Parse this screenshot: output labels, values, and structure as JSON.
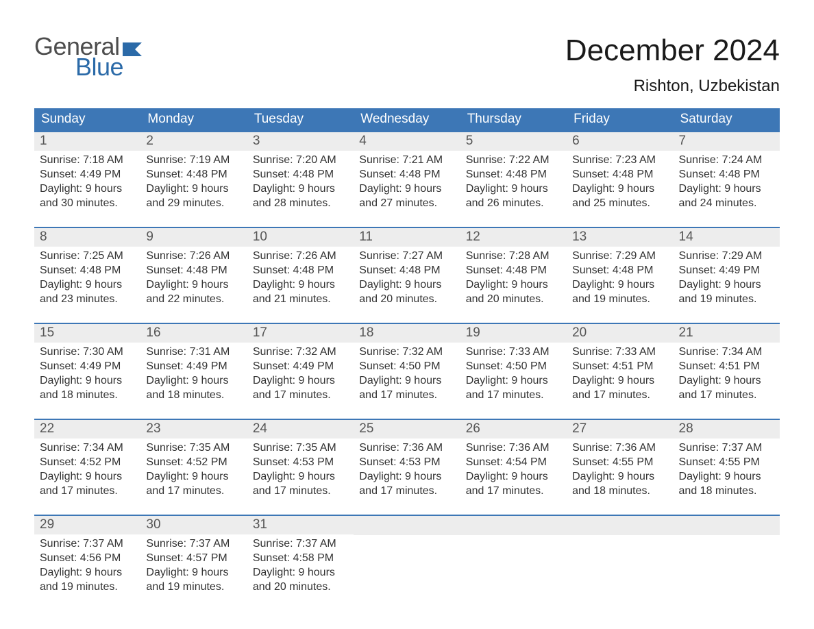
{
  "logo": {
    "word1": "General",
    "word2": "Blue",
    "text_color_top": "#4d4d4d",
    "text_color_bottom": "#2b6aa8",
    "flag_color": "#2b6aa8"
  },
  "header": {
    "month_title": "December 2024",
    "location": "Rishton, Uzbekistan"
  },
  "calendar": {
    "header_bg": "#3d77b6",
    "header_text_color": "#ffffff",
    "row_border_color": "#3d77b6",
    "daynum_bg": "#ededed",
    "daynum_color": "#555555",
    "body_text_color": "#333333",
    "weekdays": [
      "Sunday",
      "Monday",
      "Tuesday",
      "Wednesday",
      "Thursday",
      "Friday",
      "Saturday"
    ],
    "weeks": [
      [
        {
          "n": "1",
          "sunrise": "7:18 AM",
          "sunset": "4:49 PM",
          "daylight_l1": "Daylight: 9 hours",
          "daylight_l2": "and 30 minutes."
        },
        {
          "n": "2",
          "sunrise": "7:19 AM",
          "sunset": "4:48 PM",
          "daylight_l1": "Daylight: 9 hours",
          "daylight_l2": "and 29 minutes."
        },
        {
          "n": "3",
          "sunrise": "7:20 AM",
          "sunset": "4:48 PM",
          "daylight_l1": "Daylight: 9 hours",
          "daylight_l2": "and 28 minutes."
        },
        {
          "n": "4",
          "sunrise": "7:21 AM",
          "sunset": "4:48 PM",
          "daylight_l1": "Daylight: 9 hours",
          "daylight_l2": "and 27 minutes."
        },
        {
          "n": "5",
          "sunrise": "7:22 AM",
          "sunset": "4:48 PM",
          "daylight_l1": "Daylight: 9 hours",
          "daylight_l2": "and 26 minutes."
        },
        {
          "n": "6",
          "sunrise": "7:23 AM",
          "sunset": "4:48 PM",
          "daylight_l1": "Daylight: 9 hours",
          "daylight_l2": "and 25 minutes."
        },
        {
          "n": "7",
          "sunrise": "7:24 AM",
          "sunset": "4:48 PM",
          "daylight_l1": "Daylight: 9 hours",
          "daylight_l2": "and 24 minutes."
        }
      ],
      [
        {
          "n": "8",
          "sunrise": "7:25 AM",
          "sunset": "4:48 PM",
          "daylight_l1": "Daylight: 9 hours",
          "daylight_l2": "and 23 minutes."
        },
        {
          "n": "9",
          "sunrise": "7:26 AM",
          "sunset": "4:48 PM",
          "daylight_l1": "Daylight: 9 hours",
          "daylight_l2": "and 22 minutes."
        },
        {
          "n": "10",
          "sunrise": "7:26 AM",
          "sunset": "4:48 PM",
          "daylight_l1": "Daylight: 9 hours",
          "daylight_l2": "and 21 minutes."
        },
        {
          "n": "11",
          "sunrise": "7:27 AM",
          "sunset": "4:48 PM",
          "daylight_l1": "Daylight: 9 hours",
          "daylight_l2": "and 20 minutes."
        },
        {
          "n": "12",
          "sunrise": "7:28 AM",
          "sunset": "4:48 PM",
          "daylight_l1": "Daylight: 9 hours",
          "daylight_l2": "and 20 minutes."
        },
        {
          "n": "13",
          "sunrise": "7:29 AM",
          "sunset": "4:48 PM",
          "daylight_l1": "Daylight: 9 hours",
          "daylight_l2": "and 19 minutes."
        },
        {
          "n": "14",
          "sunrise": "7:29 AM",
          "sunset": "4:49 PM",
          "daylight_l1": "Daylight: 9 hours",
          "daylight_l2": "and 19 minutes."
        }
      ],
      [
        {
          "n": "15",
          "sunrise": "7:30 AM",
          "sunset": "4:49 PM",
          "daylight_l1": "Daylight: 9 hours",
          "daylight_l2": "and 18 minutes."
        },
        {
          "n": "16",
          "sunrise": "7:31 AM",
          "sunset": "4:49 PM",
          "daylight_l1": "Daylight: 9 hours",
          "daylight_l2": "and 18 minutes."
        },
        {
          "n": "17",
          "sunrise": "7:32 AM",
          "sunset": "4:49 PM",
          "daylight_l1": "Daylight: 9 hours",
          "daylight_l2": "and 17 minutes."
        },
        {
          "n": "18",
          "sunrise": "7:32 AM",
          "sunset": "4:50 PM",
          "daylight_l1": "Daylight: 9 hours",
          "daylight_l2": "and 17 minutes."
        },
        {
          "n": "19",
          "sunrise": "7:33 AM",
          "sunset": "4:50 PM",
          "daylight_l1": "Daylight: 9 hours",
          "daylight_l2": "and 17 minutes."
        },
        {
          "n": "20",
          "sunrise": "7:33 AM",
          "sunset": "4:51 PM",
          "daylight_l1": "Daylight: 9 hours",
          "daylight_l2": "and 17 minutes."
        },
        {
          "n": "21",
          "sunrise": "7:34 AM",
          "sunset": "4:51 PM",
          "daylight_l1": "Daylight: 9 hours",
          "daylight_l2": "and 17 minutes."
        }
      ],
      [
        {
          "n": "22",
          "sunrise": "7:34 AM",
          "sunset": "4:52 PM",
          "daylight_l1": "Daylight: 9 hours",
          "daylight_l2": "and 17 minutes."
        },
        {
          "n": "23",
          "sunrise": "7:35 AM",
          "sunset": "4:52 PM",
          "daylight_l1": "Daylight: 9 hours",
          "daylight_l2": "and 17 minutes."
        },
        {
          "n": "24",
          "sunrise": "7:35 AM",
          "sunset": "4:53 PM",
          "daylight_l1": "Daylight: 9 hours",
          "daylight_l2": "and 17 minutes."
        },
        {
          "n": "25",
          "sunrise": "7:36 AM",
          "sunset": "4:53 PM",
          "daylight_l1": "Daylight: 9 hours",
          "daylight_l2": "and 17 minutes."
        },
        {
          "n": "26",
          "sunrise": "7:36 AM",
          "sunset": "4:54 PM",
          "daylight_l1": "Daylight: 9 hours",
          "daylight_l2": "and 17 minutes."
        },
        {
          "n": "27",
          "sunrise": "7:36 AM",
          "sunset": "4:55 PM",
          "daylight_l1": "Daylight: 9 hours",
          "daylight_l2": "and 18 minutes."
        },
        {
          "n": "28",
          "sunrise": "7:37 AM",
          "sunset": "4:55 PM",
          "daylight_l1": "Daylight: 9 hours",
          "daylight_l2": "and 18 minutes."
        }
      ],
      [
        {
          "n": "29",
          "sunrise": "7:37 AM",
          "sunset": "4:56 PM",
          "daylight_l1": "Daylight: 9 hours",
          "daylight_l2": "and 19 minutes."
        },
        {
          "n": "30",
          "sunrise": "7:37 AM",
          "sunset": "4:57 PM",
          "daylight_l1": "Daylight: 9 hours",
          "daylight_l2": "and 19 minutes."
        },
        {
          "n": "31",
          "sunrise": "7:37 AM",
          "sunset": "4:58 PM",
          "daylight_l1": "Daylight: 9 hours",
          "daylight_l2": "and 20 minutes."
        },
        null,
        null,
        null,
        null
      ]
    ]
  },
  "labels": {
    "sunrise_prefix": "Sunrise: ",
    "sunset_prefix": "Sunset: "
  }
}
